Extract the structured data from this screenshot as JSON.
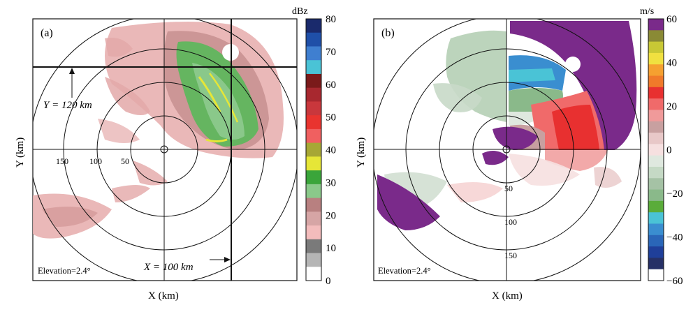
{
  "panels": [
    {
      "id": "a",
      "label": "(a)",
      "x_axis_title": "X (km)",
      "y_axis_title": "Y (km)",
      "ring_labels": [
        "150",
        "100",
        "50"
      ],
      "elevation_text": "Elevation=2.4°",
      "annotation_y": "Y = 120  km",
      "annotation_x": "X = 100  km",
      "colorbar": {
        "unit": "dBz",
        "ticks": [
          "80",
          "70",
          "60",
          "50",
          "40",
          "30",
          "20",
          "10",
          "0"
        ],
        "colors": [
          "#1a2a6c",
          "#1f4fa8",
          "#3f7fd0",
          "#4ac3d6",
          "#7a1a1a",
          "#a8282f",
          "#c9373c",
          "#e9342f",
          "#f06060",
          "#a7a735",
          "#e6e637",
          "#3aa53a",
          "#8ac98a",
          "#b88080",
          "#d6a5a5",
          "#f3bcbc",
          "#7a7a7a",
          "#b5b5b5",
          "#ffffff"
        ]
      }
    },
    {
      "id": "b",
      "label": "(b)",
      "x_axis_title": "X (km)",
      "y_axis_title": "Y (km)",
      "ring_labels": [
        "50",
        "100",
        "150"
      ],
      "elevation_text": "Elevation=2.4°",
      "colorbar": {
        "unit": "m/s",
        "ticks": [
          "60",
          "40",
          "20",
          "0",
          "−20",
          "−40",
          "−60"
        ],
        "colors": [
          "#7a2a8a",
          "#8a8a35",
          "#c8c835",
          "#f0e040",
          "#f5a030",
          "#f07a2a",
          "#e83030",
          "#f06a6a",
          "#f09a9a",
          "#c8a0a0",
          "#e8c8c8",
          "#f6e0e0",
          "#dfe8df",
          "#c5d9c5",
          "#a5c2a5",
          "#8ab98a",
          "#5aac3a",
          "#4ac3d6",
          "#3a8ed0",
          "#2a66b8",
          "#1f3f9a",
          "#263066",
          "#ffffff"
        ]
      }
    }
  ]
}
